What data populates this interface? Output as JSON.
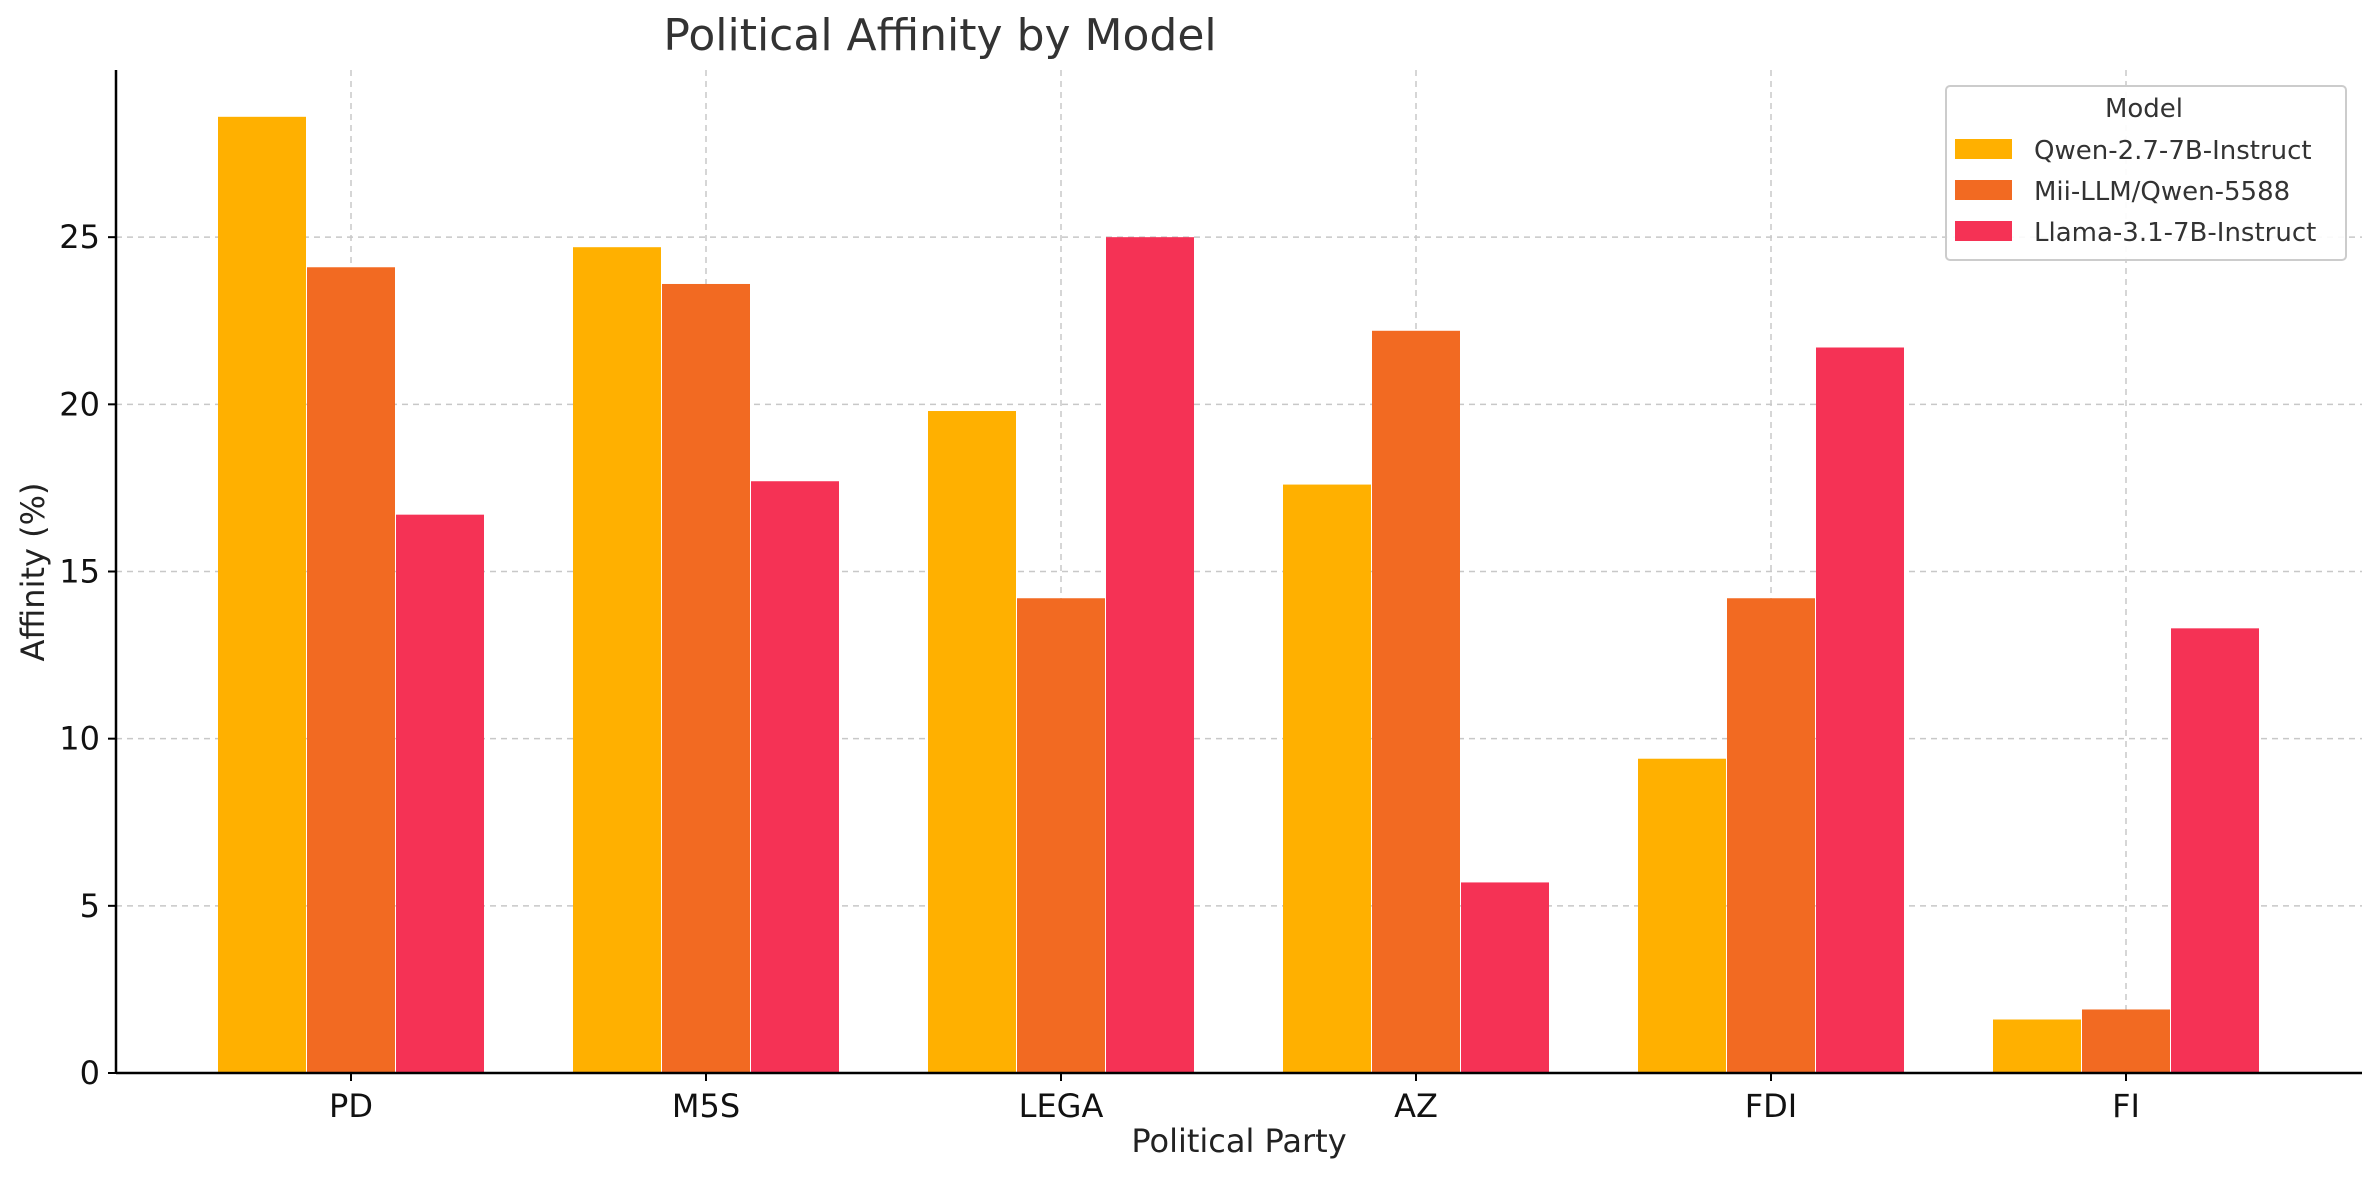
{
  "chart_data": {
    "type": "bar",
    "title": "Political Affinity by Model",
    "xlabel": "Political Party",
    "ylabel": "Affinity (%)",
    "categories": [
      "PD",
      "M5S",
      "LEGA",
      "AZ",
      "FDI",
      "FI"
    ],
    "series": [
      {
        "name": "Qwen-2.7-7B-Instruct",
        "color": "#FFB000",
        "values": [
          28.6,
          24.7,
          19.8,
          17.6,
          9.4,
          1.6
        ]
      },
      {
        "name": "Mii-LLM/Qwen-5588",
        "color": "#F26A22",
        "values": [
          24.1,
          23.6,
          14.2,
          22.2,
          14.2,
          1.9
        ]
      },
      {
        "name": "Llama-3.1-7B-Instruct",
        "color": "#F53255",
        "values": [
          16.7,
          17.7,
          25.0,
          5.7,
          21.7,
          13.3
        ]
      }
    ],
    "ylim": [
      0,
      30
    ],
    "yticks": [
      0,
      5,
      10,
      15,
      20,
      25
    ],
    "grid": true,
    "legend": {
      "title": "Model",
      "position": "top-right"
    }
  }
}
